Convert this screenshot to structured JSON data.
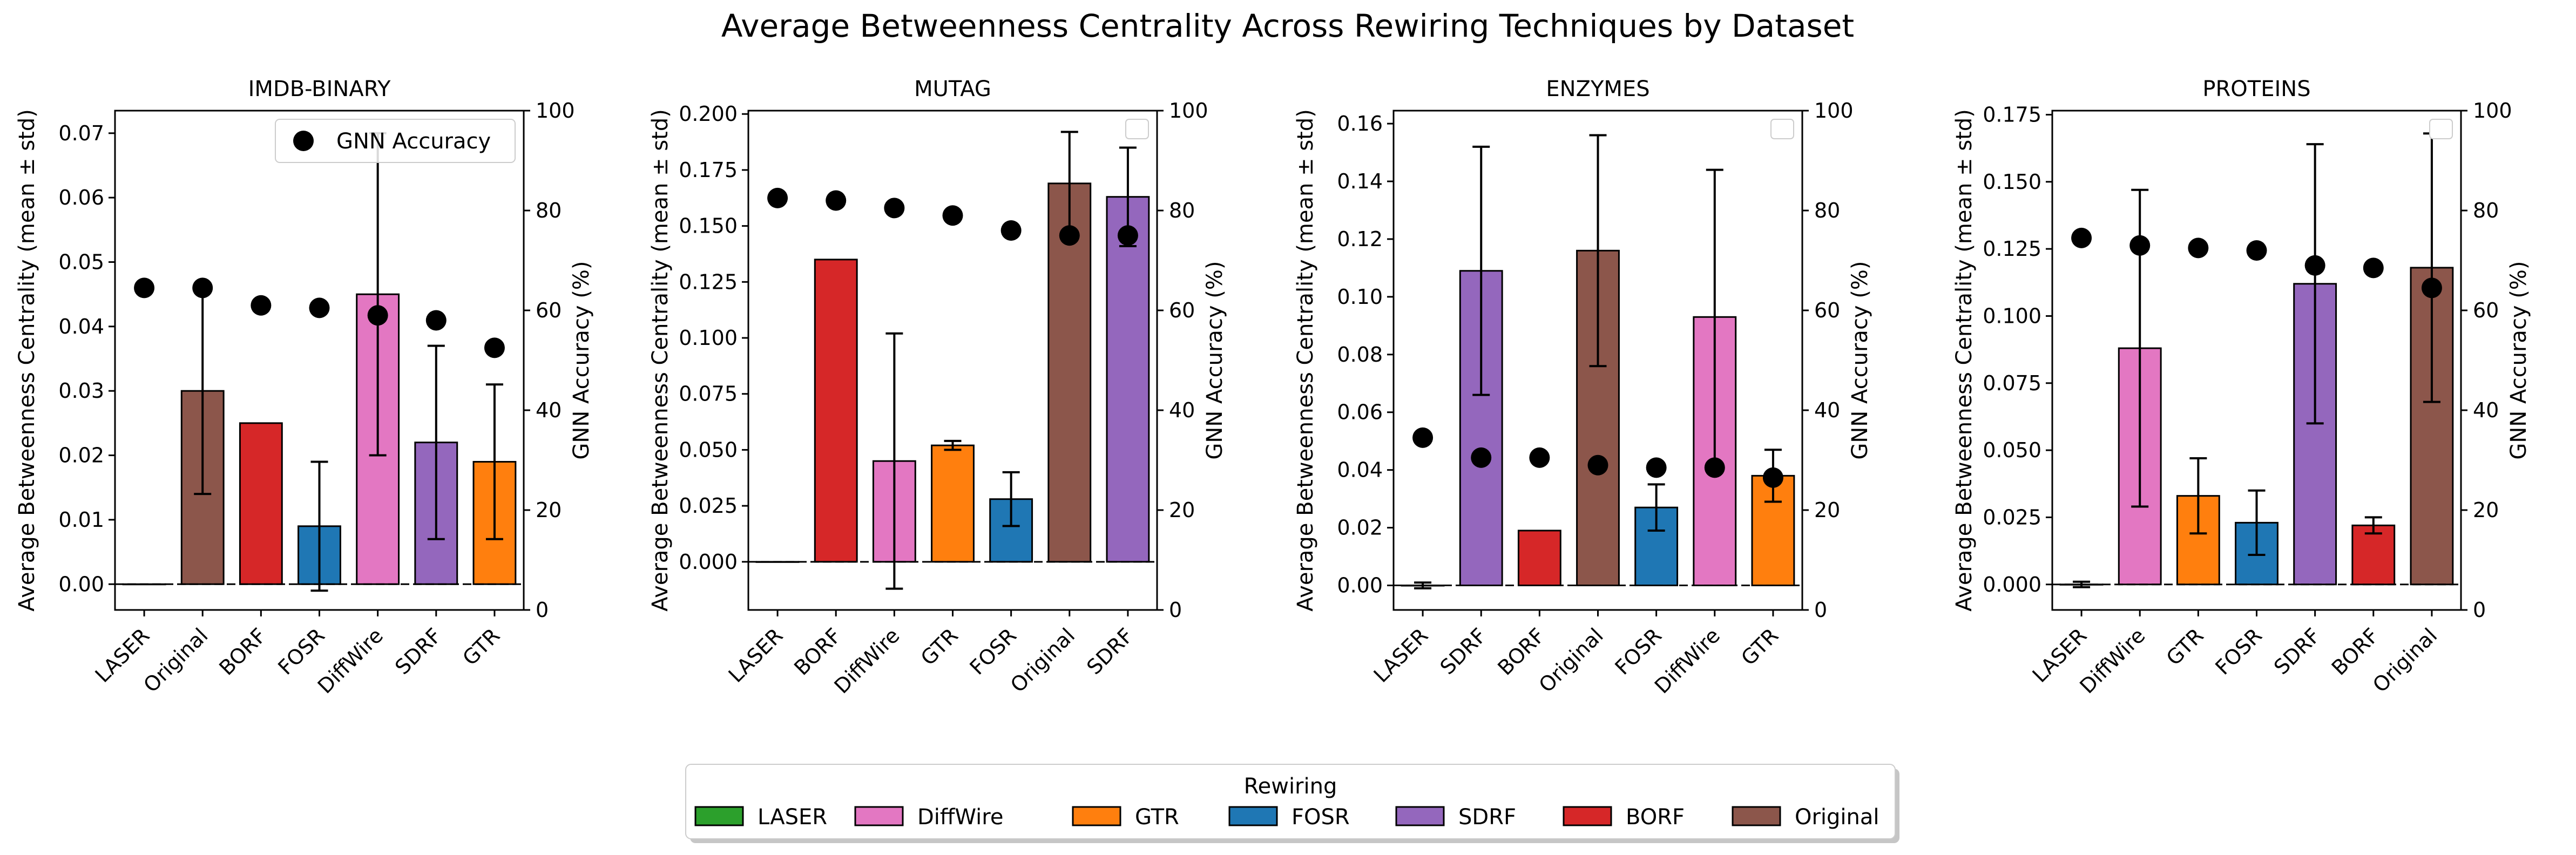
{
  "figure_title": "Average Betweenness Centrality Across Rewiring Techniques by Dataset",
  "colors": {
    "LASER": "#2ca02c",
    "DiffWire": "#e377c2",
    "GTR": "#ff7f0e",
    "FOSR": "#1f77b4",
    "SDRF": "#9467bd",
    "BORF": "#d62728",
    "Original": "#8c564b"
  },
  "legend": {
    "title": "Rewiring",
    "items": [
      "LASER",
      "DiffWire",
      "GTR",
      "FOSR",
      "SDRF",
      "BORF",
      "Original"
    ]
  },
  "chart_data": [
    {
      "type": "bar",
      "title": "IMDB-BINARY",
      "ylabel": "Average Betweenness Centrality (mean ± std)",
      "y2label": "GNN Accuracy (%)",
      "ylim": [
        -0.004,
        0.0735
      ],
      "yticks": [
        0.0,
        0.01,
        0.02,
        0.03,
        0.04,
        0.05,
        0.06,
        0.07
      ],
      "ytick_decimals": 2,
      "y2lim": [
        0,
        100
      ],
      "y2ticks": [
        0,
        20,
        40,
        60,
        80,
        100
      ],
      "categories": [
        "LASER",
        "Original",
        "BORF",
        "FOSR",
        "DiffWire",
        "SDRF",
        "GTR"
      ],
      "values": [
        0.0,
        0.03,
        0.025,
        0.009,
        0.045,
        0.022,
        0.019
      ],
      "errors": [
        0.0,
        0.016,
        0.0,
        0.01,
        0.025,
        0.015,
        0.012
      ],
      "accuracy": [
        64.5,
        64.5,
        61,
        60.5,
        59,
        58,
        52.5
      ],
      "accuracy_legend": "GNN Accuracy"
    },
    {
      "type": "bar",
      "title": "MUTAG",
      "ylabel": "Average Betweenness Centrality (mean ± std)",
      "y2label": "GNN Accuracy (%)",
      "ylim": [
        -0.0215,
        0.2015
      ],
      "yticks": [
        0.0,
        0.025,
        0.05,
        0.075,
        0.1,
        0.125,
        0.15,
        0.175,
        0.2
      ],
      "ytick_decimals": 3,
      "y2lim": [
        0,
        100
      ],
      "y2ticks": [
        0,
        20,
        40,
        60,
        80,
        100
      ],
      "categories": [
        "LASER",
        "BORF",
        "DiffWire",
        "GTR",
        "FOSR",
        "Original",
        "SDRF"
      ],
      "values": [
        0.0,
        0.135,
        0.045,
        0.052,
        0.028,
        0.169,
        0.163
      ],
      "errors": [
        0.0,
        0.0,
        0.057,
        0.002,
        0.012,
        0.023,
        0.022
      ],
      "accuracy": [
        82.5,
        82,
        80.5,
        79,
        76,
        75,
        75
      ]
    },
    {
      "type": "bar",
      "title": "ENZYMES",
      "ylabel": "Average Betweenness Centrality (mean ± std)",
      "y2label": "GNN Accuracy (%)",
      "ylim": [
        -0.0085,
        0.1645
      ],
      "yticks": [
        0.0,
        0.02,
        0.04,
        0.06,
        0.08,
        0.1,
        0.12,
        0.14,
        0.16
      ],
      "ytick_decimals": 2,
      "y2lim": [
        0,
        100
      ],
      "y2ticks": [
        0,
        20,
        40,
        60,
        80,
        100
      ],
      "categories": [
        "LASER",
        "SDRF",
        "BORF",
        "Original",
        "FOSR",
        "DiffWire",
        "GTR"
      ],
      "values": [
        0.0,
        0.109,
        0.019,
        0.116,
        0.027,
        0.093,
        0.038
      ],
      "errors": [
        0.001,
        0.043,
        0.0,
        0.04,
        0.008,
        0.051,
        0.009
      ],
      "accuracy": [
        34.5,
        30.5,
        30.5,
        29,
        28.5,
        28.5,
        26.5
      ]
    },
    {
      "type": "bar",
      "title": "PROTEINS",
      "ylabel": "Average Betweenness Centrality (mean ± std)",
      "y2label": "GNN Accuracy (%)",
      "ylim": [
        -0.0095,
        0.1765
      ],
      "yticks": [
        0.0,
        0.025,
        0.05,
        0.075,
        0.1,
        0.125,
        0.15,
        0.175
      ],
      "ytick_decimals": 3,
      "y2lim": [
        0,
        100
      ],
      "y2ticks": [
        0,
        20,
        40,
        60,
        80,
        100
      ],
      "categories": [
        "LASER",
        "DiffWire",
        "GTR",
        "FOSR",
        "SDRF",
        "BORF",
        "Original"
      ],
      "values": [
        0.0,
        0.088,
        0.033,
        0.023,
        0.112,
        0.022,
        0.118
      ],
      "errors": [
        0.001,
        0.059,
        0.014,
        0.012,
        0.052,
        0.003,
        0.05
      ],
      "accuracy": [
        74.5,
        73,
        72.5,
        72,
        69,
        68.5,
        64.5
      ]
    }
  ]
}
